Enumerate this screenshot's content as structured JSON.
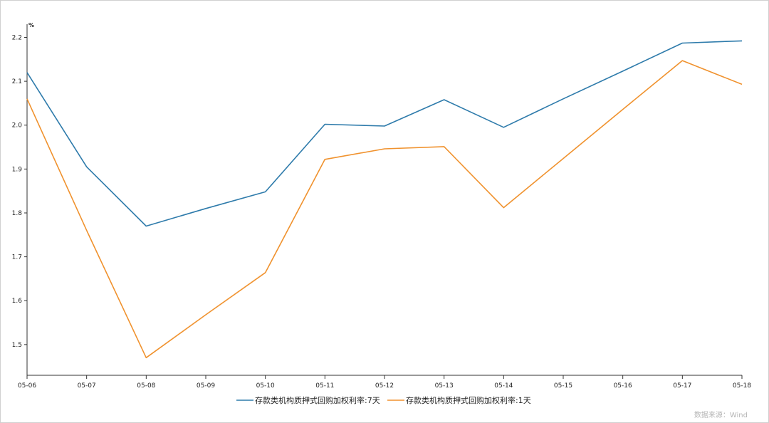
{
  "chart_data": {
    "type": "line",
    "y_unit": "%",
    "ylim": [
      1.43,
      2.23
    ],
    "y_ticks": [
      1.5,
      1.6,
      1.7,
      1.8,
      1.9,
      2.0,
      2.1,
      2.2
    ],
    "y_tick_labels": [
      "1.5",
      "1.6",
      "1.7",
      "1.8",
      "1.9",
      "2.0",
      "2.1",
      "2.2"
    ],
    "categories": [
      "05-06",
      "05-07",
      "05-08",
      "05-09",
      "05-10",
      "05-11",
      "05-12",
      "05-13",
      "05-14",
      "05-15",
      "05-16",
      "05-17",
      "05-18"
    ],
    "series": [
      {
        "name": "存款类机构质押式回购加权利率:7天",
        "color": "#2e7bab",
        "values": [
          2.12,
          1.905,
          1.77,
          1.81,
          1.848,
          2.002,
          1.998,
          2.058,
          1.995,
          2.06,
          2.123,
          2.187,
          2.192
        ]
      },
      {
        "name": "存款类机构质押式回购加权利率:1天",
        "color": "#f0922e",
        "values": [
          2.06,
          1.76,
          1.47,
          1.568,
          1.664,
          1.922,
          1.946,
          1.951,
          1.812,
          1.924,
          2.036,
          2.147,
          2.093
        ]
      }
    ],
    "grid": false,
    "legend_position": "bottom-center",
    "source": "数据来源：Wind"
  }
}
